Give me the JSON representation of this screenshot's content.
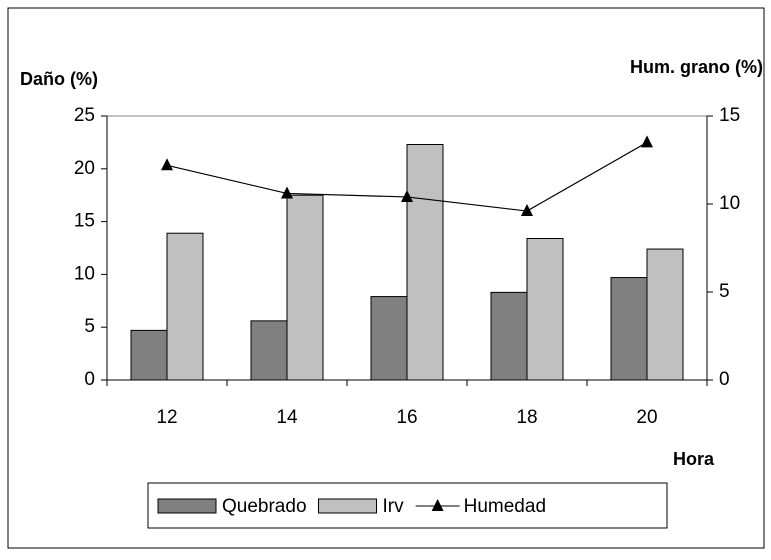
{
  "chart_data": {
    "type": "bar",
    "y_label": "Daño (%)",
    "y2_label": "Hum. grano (%)",
    "x_label": "Hora",
    "categories": [
      "12",
      "14",
      "16",
      "18",
      "20"
    ],
    "series": [
      {
        "name": "Quebrado",
        "color": "#808080",
        "values": [
          4.7,
          5.6,
          7.9,
          8.3,
          9.7
        ]
      },
      {
        "name": "Irv",
        "color": "#c0c0c0",
        "values": [
          13.9,
          17.5,
          22.3,
          13.4,
          12.4
        ]
      },
      {
        "name": "Humedad",
        "color": "#000000",
        "type": "line",
        "axis": "y2",
        "values": [
          12.2,
          10.6,
          10.4,
          9.6,
          13.5
        ]
      }
    ],
    "ylim": [
      0,
      25
    ],
    "yticks": [
      0,
      5,
      10,
      15,
      20,
      25
    ],
    "y2lim": [
      0,
      15
    ],
    "y2ticks": [
      0,
      5,
      10,
      15
    ]
  }
}
